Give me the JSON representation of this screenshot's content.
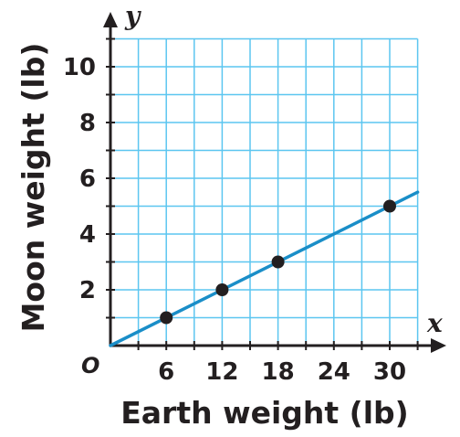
{
  "chart_data": {
    "type": "line",
    "xlabel": "Earth weight (lb)",
    "ylabel": "Moon weight (lb)",
    "x_axis_symbol": "x",
    "y_axis_symbol": "y",
    "origin_label": "O",
    "xlim": [
      0,
      33
    ],
    "ylim": [
      0,
      11
    ],
    "x_ticks": [
      6,
      12,
      18,
      24,
      30
    ],
    "x_tick_labels": [
      "6",
      "12",
      "18",
      "24",
      "30"
    ],
    "y_ticks": [
      2,
      4,
      6,
      8,
      10
    ],
    "y_tick_labels": [
      "2",
      "4",
      "6",
      "8",
      "10"
    ],
    "grid": true,
    "grid_step_x": 3,
    "grid_step_y": 1,
    "series": [
      {
        "points": [
          [
            6,
            1
          ],
          [
            12,
            2
          ],
          [
            18,
            3
          ],
          [
            30,
            5
          ]
        ],
        "line": {
          "slope": 0.1667,
          "intercept": 0,
          "x_start": 0,
          "x_end": 33
        }
      }
    ],
    "colors": {
      "grid": "#5cc6f0",
      "line": "#1a8ec8",
      "axis": "#231f20",
      "point": "#231f20"
    }
  }
}
